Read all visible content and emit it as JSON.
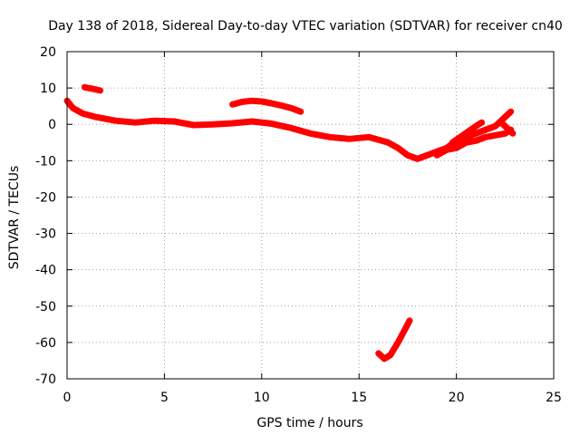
{
  "chart_data": {
    "type": "line",
    "title": "Day 138 of 2018, Sidereal Day-to-day VTEC variation (SDTVAR) for receiver cn40",
    "xlabel": "GPS time / hours",
    "ylabel": "SDTVAR / TECUs",
    "xlim": [
      0,
      25
    ],
    "ylim": [
      -70,
      20
    ],
    "x_ticks": [
      "0",
      "5",
      "10",
      "15",
      "20",
      "25"
    ],
    "x_tick_values": [
      0,
      5,
      10,
      15,
      20,
      25
    ],
    "y_ticks": [
      "20",
      "10",
      "0",
      "-10",
      "-20",
      "-30",
      "-40",
      "-50",
      "-60",
      "-70"
    ],
    "y_tick_values": [
      20,
      10,
      0,
      -10,
      -20,
      -30,
      -40,
      -50,
      -60,
      -70
    ],
    "grid": true,
    "series_color": "#ff0000",
    "series": [
      {
        "name": "main",
        "points": [
          [
            0,
            6.5
          ],
          [
            0.3,
            4.5
          ],
          [
            0.8,
            3
          ],
          [
            1.5,
            2
          ],
          [
            2.5,
            1
          ],
          [
            3.5,
            0.5
          ],
          [
            4.5,
            1
          ],
          [
            5.5,
            0.8
          ],
          [
            6.5,
            -0.2
          ],
          [
            7.5,
            0
          ],
          [
            8.5,
            0.3
          ],
          [
            9.5,
            0.8
          ],
          [
            10.5,
            0.2
          ],
          [
            11.5,
            -1
          ],
          [
            12.5,
            -2.5
          ],
          [
            13.5,
            -3.5
          ],
          [
            14.5,
            -4
          ],
          [
            15.5,
            -3.5
          ],
          [
            16.5,
            -5
          ],
          [
            17,
            -6.5
          ],
          [
            17.5,
            -8.5
          ],
          [
            18,
            -9.5
          ],
          [
            18.5,
            -8.5
          ],
          [
            19,
            -7.5
          ],
          [
            19.5,
            -6.5
          ],
          [
            20,
            -4.5
          ],
          [
            20.5,
            -3.5
          ],
          [
            21,
            -2.5
          ],
          [
            21.5,
            -1.5
          ],
          [
            22,
            -0.5
          ],
          [
            22.5,
            2
          ],
          [
            22.8,
            3.5
          ]
        ]
      },
      {
        "name": "spread-lower",
        "points": [
          [
            19,
            -8.5
          ],
          [
            19.5,
            -7
          ],
          [
            20,
            -6.5
          ],
          [
            20.5,
            -5
          ],
          [
            21,
            -4.5
          ],
          [
            21.5,
            -3.5
          ],
          [
            22,
            -3
          ],
          [
            22.5,
            -2.5
          ],
          [
            22.8,
            -1.5
          ]
        ]
      },
      {
        "name": "spread-upper",
        "points": [
          [
            19.8,
            -5
          ],
          [
            20.2,
            -3.5
          ],
          [
            20.6,
            -2
          ],
          [
            21,
            -0.5
          ],
          [
            21.3,
            0.5
          ]
        ]
      },
      {
        "name": "tail-right",
        "points": [
          [
            22.3,
            0.5
          ],
          [
            22.6,
            -1
          ],
          [
            22.9,
            -2.5
          ]
        ]
      },
      {
        "name": "early-segment",
        "points": [
          [
            0.9,
            10.2
          ],
          [
            1.3,
            9.8
          ],
          [
            1.7,
            9.3
          ]
        ]
      },
      {
        "name": "mid-segment",
        "points": [
          [
            8.5,
            5.5
          ],
          [
            9,
            6.2
          ],
          [
            9.5,
            6.5
          ],
          [
            10,
            6.3
          ],
          [
            10.5,
            5.8
          ],
          [
            11,
            5.2
          ],
          [
            11.5,
            4.5
          ],
          [
            12,
            3.5
          ]
        ]
      },
      {
        "name": "dip-segment",
        "points": [
          [
            16,
            -63
          ],
          [
            16.3,
            -64.5
          ],
          [
            16.6,
            -63.5
          ],
          [
            17,
            -60
          ],
          [
            17.3,
            -57
          ],
          [
            17.6,
            -54
          ]
        ]
      }
    ]
  }
}
